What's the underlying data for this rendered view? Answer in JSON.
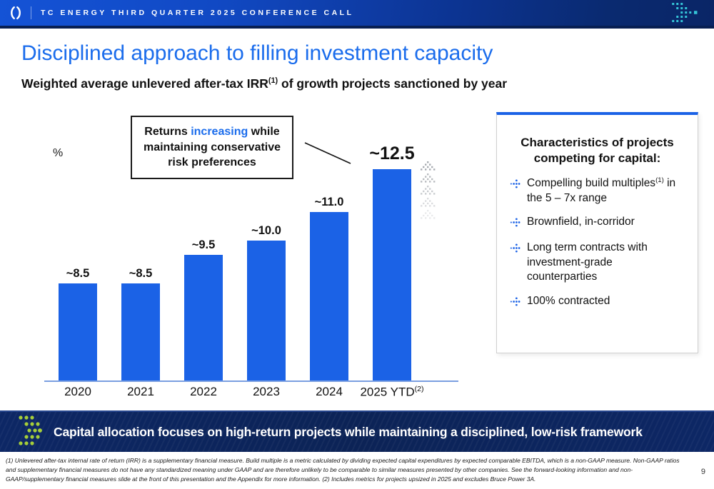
{
  "header": {
    "title": "TC ENERGY THIRD QUARTER 2025 CONFERENCE CALL"
  },
  "main": {
    "title": "Disciplined approach to filling investment capacity",
    "subtitle": {
      "pre": "Weighted average unlevered after-tax IRR",
      "sup": "(1)",
      "post": " of growth projects sanctioned by year"
    }
  },
  "callout": {
    "pre": "Returns ",
    "highlight": "increasing",
    "post": " while maintaining conservative risk preferences"
  },
  "chart_data": {
    "type": "bar",
    "title": "Weighted average unlevered after-tax IRR of growth projects sanctioned by year",
    "ylabel": "%",
    "categories": [
      {
        "label": "2020",
        "sup": ""
      },
      {
        "label": "2021",
        "sup": ""
      },
      {
        "label": "2022",
        "sup": ""
      },
      {
        "label": "2023",
        "sup": ""
      },
      {
        "label": "2024",
        "sup": ""
      },
      {
        "label": "2025 YTD",
        "sup": "(2)"
      }
    ],
    "values": [
      8.5,
      8.5,
      9.5,
      10.0,
      11.0,
      12.5
    ],
    "value_labels": [
      "~8.5",
      "~8.5",
      "~9.5",
      "~10.0",
      "~11.0",
      "~12.5"
    ],
    "emphasized_index": 5,
    "bar_color": "#1b62e6",
    "grid": false,
    "legend": false
  },
  "panel": {
    "title": "Characteristics of projects competing for capital:",
    "bullets": [
      {
        "pre": "Compelling build multiples",
        "sup": "(1)",
        "post": " in the 5 – 7x range"
      },
      {
        "pre": "Brownfield, in-corridor",
        "sup": "",
        "post": ""
      },
      {
        "pre": "Long term contracts with investment-grade counterparties",
        "sup": "",
        "post": ""
      },
      {
        "pre": "100% contracted",
        "sup": "",
        "post": ""
      }
    ]
  },
  "banner": {
    "text": "Capital allocation focuses on high-return projects while maintaining a disciplined, low-risk framework"
  },
  "footer": {
    "footnote": "(1) Unlevered after-tax internal rate of return (IRR) is a supplementary financial measure. Build multiple is a metric calculated by dividing expected capital expenditures by expected comparable EBITDA, which is a non-GAAP measure. Non-GAAP ratios and supplementary financial measures do not have any standardized meaning under GAAP and are therefore unlikely to be comparable to similar measures presented by other companies. See the forward-looking information and non-GAAP/supplementary financial measures slide at the front of this presentation and the Appendix for more information. (2) Includes metrics for projects upsized in 2025 and excludes Bruce Power 3A.",
    "page_number": "9"
  },
  "colors": {
    "accent_blue": "#1b62e6",
    "title_blue": "#1a6cec",
    "banner_navy": "#0d2765",
    "teal_dots": "#35c4d7",
    "green_dots": "#a6ce39",
    "chevron_gray": "#8a8f96"
  }
}
